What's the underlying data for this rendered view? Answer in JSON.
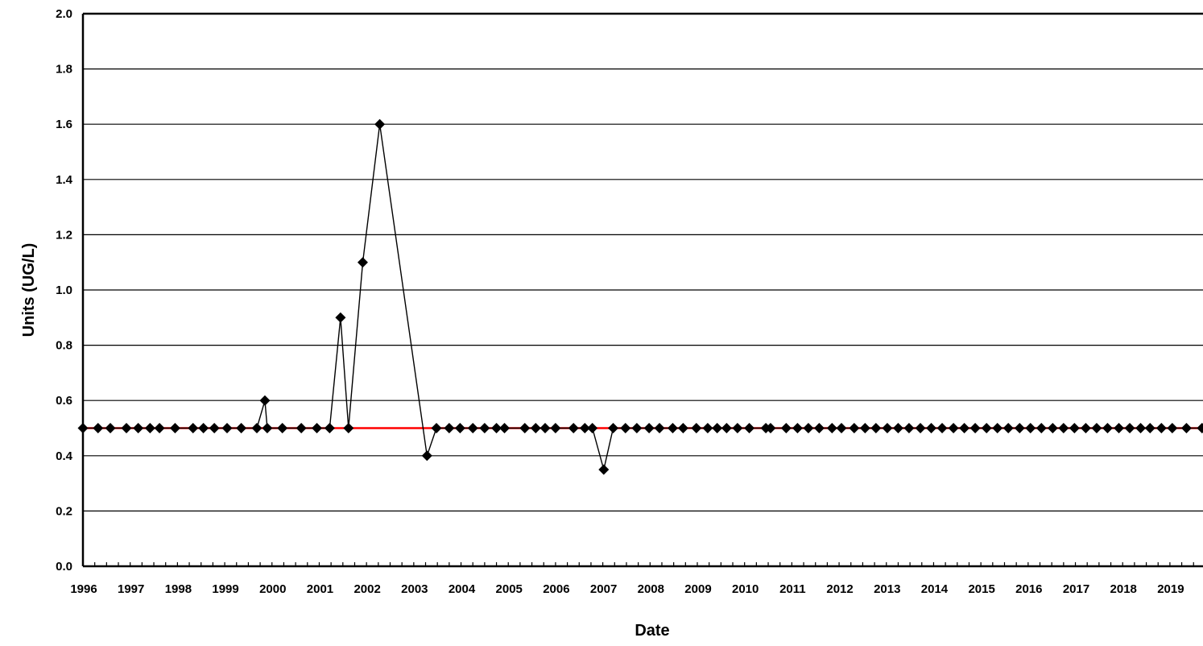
{
  "chart_data": {
    "type": "line",
    "title": "",
    "xlabel": "Date",
    "ylabel": "Units (UG/L)",
    "ylim": [
      0,
      2.0
    ],
    "xlim": [
      1996.0,
      2019.7
    ],
    "y_ticks": [
      "0.0",
      "0.2",
      "0.4",
      "0.6",
      "0.8",
      "1.0",
      "1.2",
      "1.4",
      "1.6",
      "1.8",
      "2.0"
    ],
    "x_ticks": [
      "1996",
      "1997",
      "1998",
      "1999",
      "2000",
      "2001",
      "2002",
      "2003",
      "2004",
      "2005",
      "2006",
      "2007",
      "2008",
      "2009",
      "2010",
      "2011",
      "2012",
      "2013",
      "2014",
      "2015",
      "2016",
      "2017",
      "2018",
      "2019"
    ],
    "grid": true,
    "legend": "none",
    "colors": {
      "series": "#000000",
      "reference": "#ff0000",
      "grid": "#000000"
    },
    "reference_line": {
      "y": 0.5
    },
    "series": [
      {
        "marker": "diamond",
        "points": [
          [
            1996.0,
            0.5
          ],
          [
            1996.32,
            0.5
          ],
          [
            1996.58,
            0.5
          ],
          [
            1996.92,
            0.5
          ],
          [
            1997.17,
            0.5
          ],
          [
            1997.42,
            0.5
          ],
          [
            1997.62,
            0.5
          ],
          [
            1997.95,
            0.5
          ],
          [
            1998.33,
            0.5
          ],
          [
            1998.55,
            0.5
          ],
          [
            1998.78,
            0.5
          ],
          [
            1999.05,
            0.5
          ],
          [
            1999.35,
            0.5
          ],
          [
            1999.68,
            0.5
          ],
          [
            1999.85,
            0.6
          ],
          [
            1999.9,
            0.5
          ],
          [
            2000.22,
            0.5
          ],
          [
            2000.62,
            0.5
          ],
          [
            2000.95,
            0.5
          ],
          [
            2001.22,
            0.5
          ],
          [
            2001.45,
            0.9
          ],
          [
            2001.62,
            0.5
          ],
          [
            2001.92,
            1.1
          ],
          [
            2002.28,
            1.6
          ],
          [
            2003.28,
            0.4
          ],
          [
            2003.48,
            0.5
          ],
          [
            2003.75,
            0.5
          ],
          [
            2003.98,
            0.5
          ],
          [
            2004.25,
            0.5
          ],
          [
            2004.5,
            0.5
          ],
          [
            2004.75,
            0.5
          ],
          [
            2004.92,
            0.5
          ],
          [
            2005.35,
            0.5
          ],
          [
            2005.58,
            0.5
          ],
          [
            2005.78,
            0.5
          ],
          [
            2006.0,
            0.5
          ],
          [
            2006.38,
            0.5
          ],
          [
            2006.62,
            0.5
          ],
          [
            2006.78,
            0.5
          ],
          [
            2007.02,
            0.35
          ],
          [
            2007.22,
            0.5
          ],
          [
            2007.48,
            0.5
          ],
          [
            2007.72,
            0.5
          ],
          [
            2007.98,
            0.5
          ],
          [
            2008.2,
            0.5
          ],
          [
            2008.48,
            0.5
          ],
          [
            2008.7,
            0.5
          ],
          [
            2008.98,
            0.5
          ],
          [
            2009.22,
            0.5
          ],
          [
            2009.42,
            0.5
          ],
          [
            2009.62,
            0.5
          ],
          [
            2009.85,
            0.5
          ],
          [
            2010.1,
            0.5
          ],
          [
            2010.45,
            0.5
          ],
          [
            2010.55,
            0.5
          ],
          [
            2010.88,
            0.5
          ],
          [
            2011.12,
            0.5
          ],
          [
            2011.35,
            0.5
          ],
          [
            2011.58,
            0.5
          ],
          [
            2011.85,
            0.5
          ],
          [
            2012.05,
            0.5
          ],
          [
            2012.32,
            0.5
          ],
          [
            2012.55,
            0.5
          ],
          [
            2012.78,
            0.5
          ],
          [
            2013.02,
            0.5
          ],
          [
            2013.25,
            0.5
          ],
          [
            2013.48,
            0.5
          ],
          [
            2013.72,
            0.5
          ],
          [
            2013.95,
            0.5
          ],
          [
            2014.18,
            0.5
          ],
          [
            2014.42,
            0.5
          ],
          [
            2014.65,
            0.5
          ],
          [
            2014.88,
            0.5
          ],
          [
            2015.12,
            0.5
          ],
          [
            2015.35,
            0.5
          ],
          [
            2015.58,
            0.5
          ],
          [
            2015.82,
            0.5
          ],
          [
            2016.05,
            0.5
          ],
          [
            2016.28,
            0.5
          ],
          [
            2016.52,
            0.5
          ],
          [
            2016.75,
            0.5
          ],
          [
            2016.98,
            0.5
          ],
          [
            2017.22,
            0.5
          ],
          [
            2017.45,
            0.5
          ],
          [
            2017.68,
            0.5
          ],
          [
            2017.92,
            0.5
          ],
          [
            2018.15,
            0.5
          ],
          [
            2018.38,
            0.5
          ],
          [
            2018.58,
            0.5
          ],
          [
            2018.82,
            0.5
          ],
          [
            2019.05,
            0.5
          ],
          [
            2019.35,
            0.5
          ],
          [
            2019.68,
            0.5
          ]
        ]
      }
    ]
  }
}
